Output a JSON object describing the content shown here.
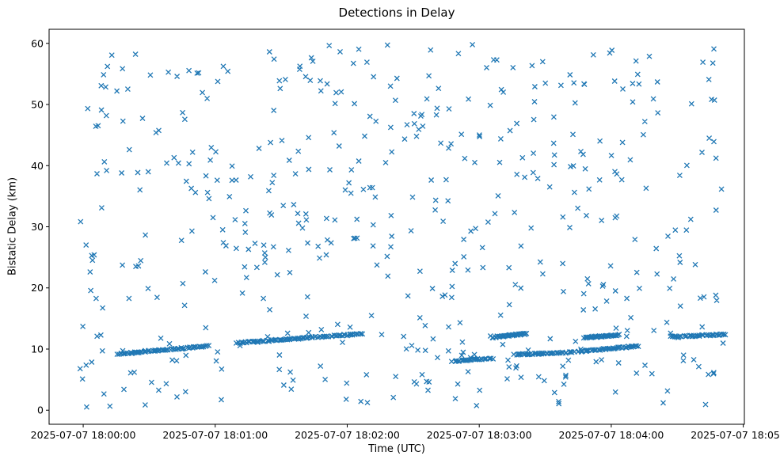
{
  "chart_data": {
    "type": "scatter",
    "title": "Detections in Delay",
    "xlabel": "Time (UTC)",
    "ylabel": "Bistatic Delay (km)",
    "marker": {
      "shape": "x",
      "color": "#1f77b4",
      "size": 6
    },
    "x_axis": {
      "tick_labels": [
        "2025-07-07 18:00:00",
        "2025-07-07 18:01:00",
        "2025-07-07 18:02:00",
        "2025-07-07 18:03:00",
        "2025-07-07 18:04:00",
        "2025-07-07 18:05:00"
      ],
      "tick_values_seconds": [
        0,
        60,
        120,
        180,
        240,
        300
      ],
      "lim_seconds": [
        -15.5,
        300.5
      ]
    },
    "y_axis": {
      "tick_values": [
        0,
        10,
        20,
        30,
        40,
        50,
        60
      ],
      "lim": [
        -2.3,
        62.3
      ]
    },
    "series": {
      "noise": {
        "seed": 20250707,
        "count": 520,
        "t_range": [
          -2,
          291
        ],
        "delay_range": [
          0.4,
          59.8
        ]
      },
      "tracks": [
        {
          "t": [
            16,
            57
          ],
          "delay": [
            9.2,
            10.5
          ],
          "count": 70
        },
        {
          "t": [
            70,
            127
          ],
          "delay": [
            11.0,
            12.5
          ],
          "count": 95
        },
        {
          "t": [
            168,
            186
          ],
          "delay": [
            8.0,
            8.5
          ],
          "count": 30
        },
        {
          "t": [
            186,
            201
          ],
          "delay": [
            11.9,
            12.5
          ],
          "count": 40
        },
        {
          "t": [
            196,
            223
          ],
          "delay": [
            9.1,
            9.5
          ],
          "count": 45
        },
        {
          "t": [
            225,
            252
          ],
          "delay": [
            9.6,
            10.5
          ],
          "count": 55
        },
        {
          "t": [
            228,
            243
          ],
          "delay": [
            11.9,
            12.3
          ],
          "count": 45
        },
        {
          "t": [
            267,
            292
          ],
          "delay": [
            12.0,
            12.4
          ],
          "count": 40
        }
      ]
    }
  }
}
